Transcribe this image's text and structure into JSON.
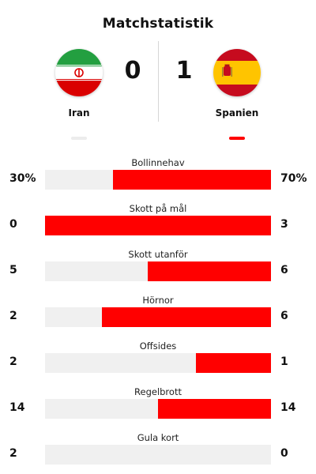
{
  "title": "Matchstatistik",
  "home": {
    "name": "Iran",
    "score": "0",
    "flag_icon": "iran-flag",
    "color": "#ececec"
  },
  "away": {
    "name": "Spanien",
    "score": "1",
    "flag_icon": "spain-flag",
    "color": "#ff0000"
  },
  "stats": [
    {
      "label": "Bollinnehav",
      "home": "30%",
      "away": "70%",
      "away_share": 0.7
    },
    {
      "label": "Skott på mål",
      "home": "0",
      "away": "3",
      "away_share": 1.0
    },
    {
      "label": "Skott utanför",
      "home": "5",
      "away": "6",
      "away_share": 0.545
    },
    {
      "label": "Hörnor",
      "home": "2",
      "away": "6",
      "away_share": 0.75
    },
    {
      "label": "Offsides",
      "home": "2",
      "away": "1",
      "away_share": 0.333
    },
    {
      "label": "Regelbrott",
      "home": "14",
      "away": "14",
      "away_share": 0.5
    },
    {
      "label": "Gula kort",
      "home": "2",
      "away": "0",
      "away_share": 0.0
    }
  ]
}
